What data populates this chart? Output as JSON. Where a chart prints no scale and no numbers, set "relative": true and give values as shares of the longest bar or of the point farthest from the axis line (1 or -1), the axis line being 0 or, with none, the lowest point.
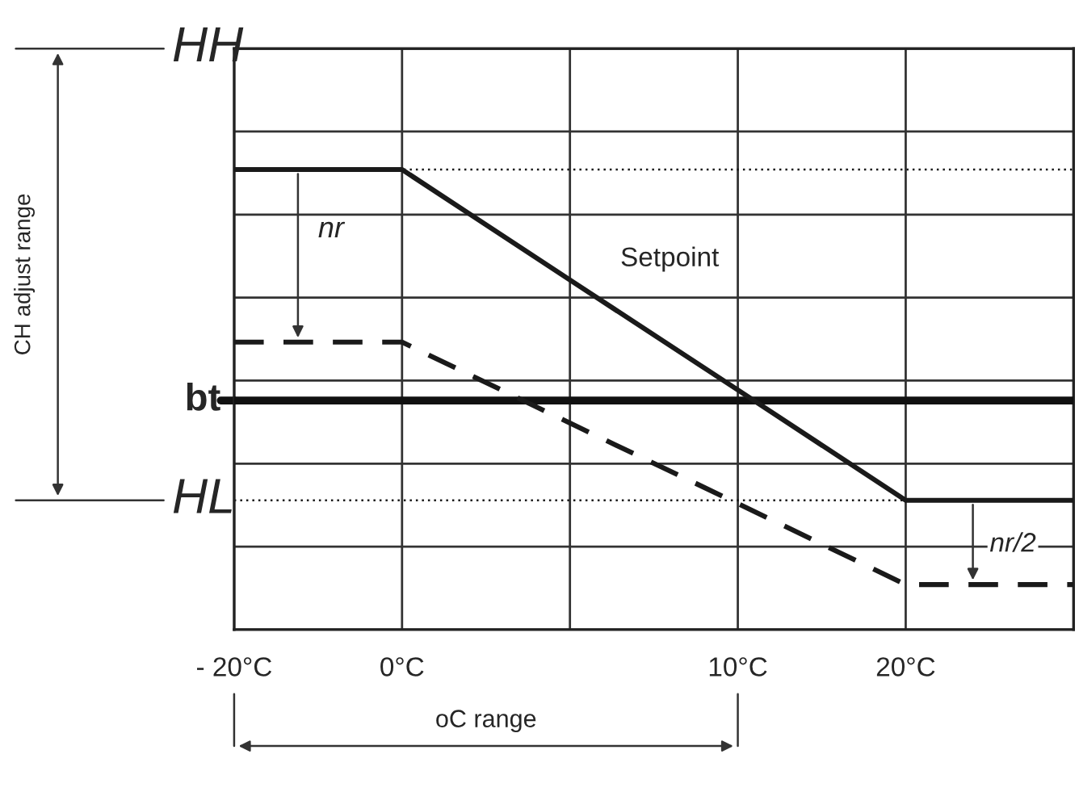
{
  "chart_data": {
    "type": "line",
    "relative": true,
    "categories": [
      "- 20°C",
      "0°C",
      null,
      "10°C",
      "20°C",
      null
    ],
    "series": [
      {
        "name": "Setpoint",
        "color": "#1a1a1a",
        "values": [
          1,
          1,
          0.76,
          0.521,
          0.281,
          0.281
        ],
        "line_style": "solid"
      },
      {
        "color": "#1a1a1a",
        "values": [
          0.625,
          0.625,
          0.449,
          0.274,
          0.098,
          0.098
        ],
        "line_style": "dashed"
      }
    ],
    "ref_lines": [
      {
        "axis": "y",
        "value": 1.263,
        "label": "HH",
        "color": "#1a1a1a",
        "line_style": "solid"
      },
      {
        "axis": "y",
        "value": 1,
        "color": "#1a1a1a",
        "line_style": "dotted"
      },
      {
        "axis": "y",
        "value": 0.498,
        "label": "bt",
        "color": "#111111",
        "line_style": "solid"
      },
      {
        "axis": "y",
        "value": 0.281,
        "label": "HL",
        "color": "#1a1a1a",
        "line_style": "dotted"
      }
    ],
    "annotations": [
      "nr",
      "nr/2",
      "CH adjust range",
      "oC range"
    ],
    "grid": true,
    "marker": "none",
    "legend": false
  }
}
